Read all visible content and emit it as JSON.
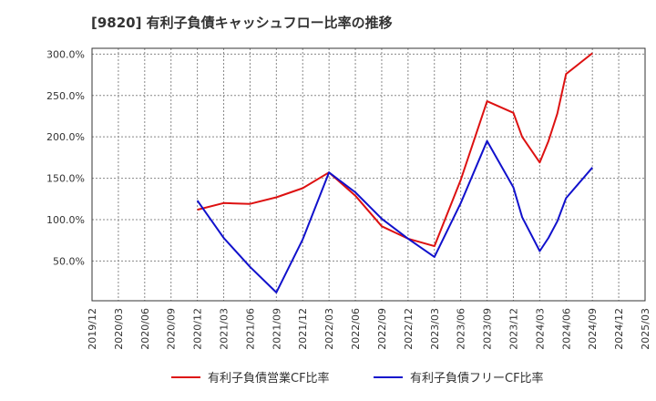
{
  "chart_data": {
    "type": "line",
    "title": "[9820]  有利子負債キャッシュフロー比率の推移",
    "xlabel": "",
    "ylabel": "",
    "x_ticks": [
      "2019/12",
      "2020/03",
      "2020/06",
      "2020/09",
      "2020/12",
      "2021/03",
      "2021/06",
      "2021/09",
      "2021/12",
      "2022/03",
      "2022/06",
      "2022/09",
      "2022/12",
      "2023/03",
      "2023/06",
      "2023/09",
      "2023/12",
      "2024/03",
      "2024/06",
      "2024/09",
      "2024/12",
      "2025/03"
    ],
    "y_ticks": [
      50,
      100,
      150,
      200,
      250,
      300
    ],
    "y_tick_labels": [
      "50.0%",
      "100.0%",
      "150.0%",
      "200.0%",
      "250.0%",
      "300.0%"
    ],
    "ylim": [
      2,
      307
    ],
    "grid": true,
    "legend_position": "bottom",
    "series": [
      {
        "name": "有利子負債営業CF比率",
        "color": "#dd1111",
        "points": [
          [
            "2020/12",
            112
          ],
          [
            "2021/03",
            120
          ],
          [
            "2021/06",
            119
          ],
          [
            "2021/09",
            127
          ],
          [
            "2021/12",
            138
          ],
          [
            "2022/03",
            157
          ],
          [
            "2022/06",
            129
          ],
          [
            "2022/09",
            92
          ],
          [
            "2022/12",
            77
          ],
          [
            "2023/03",
            68
          ],
          [
            "2023/06",
            148
          ],
          [
            "2023/09",
            243
          ],
          [
            "2023/12",
            229
          ],
          [
            "2024/01",
            200
          ],
          [
            "2024/03",
            169
          ],
          [
            "2024/04",
            195
          ],
          [
            "2024/05",
            228
          ],
          [
            "2024/06",
            276
          ],
          [
            "2024/09",
            301
          ]
        ]
      },
      {
        "name": "有利子負債フリーCF比率",
        "color": "#1111cc",
        "points": [
          [
            "2020/12",
            123
          ],
          [
            "2021/03",
            78
          ],
          [
            "2021/06",
            43
          ],
          [
            "2021/09",
            12
          ],
          [
            "2021/12",
            76
          ],
          [
            "2022/03",
            157
          ],
          [
            "2022/06",
            133
          ],
          [
            "2022/09",
            101
          ],
          [
            "2022/12",
            77
          ],
          [
            "2023/03",
            55
          ],
          [
            "2023/06",
            120
          ],
          [
            "2023/09",
            195
          ],
          [
            "2023/12",
            139
          ],
          [
            "2024/01",
            103
          ],
          [
            "2024/03",
            62
          ],
          [
            "2024/04",
            78
          ],
          [
            "2024/05",
            98
          ],
          [
            "2024/06",
            126
          ],
          [
            "2024/09",
            163
          ]
        ]
      }
    ]
  }
}
